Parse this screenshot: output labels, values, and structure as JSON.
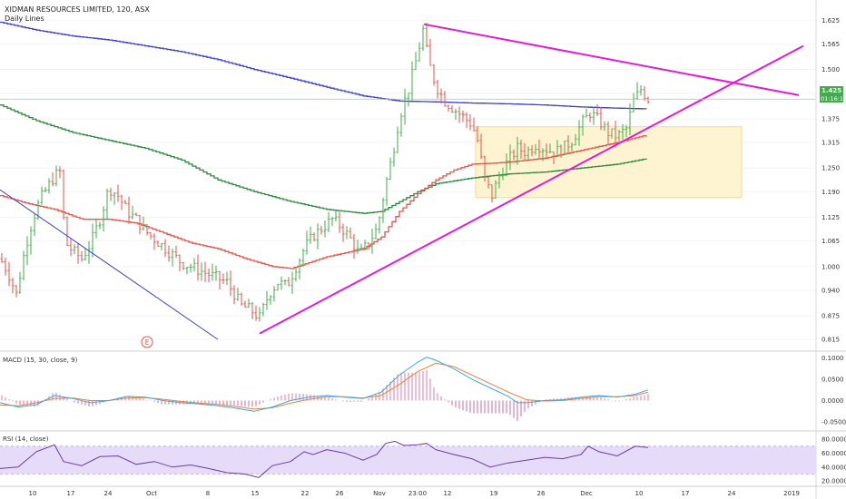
{
  "header": {
    "title": "XIDMAN RESOURCES LIMITED, 120, ASX",
    "subtitle": "Daily Lines"
  },
  "price_label": {
    "value": "1.425",
    "countdown": "01:16:14"
  },
  "macd": {
    "title": "MACD (15, 30, close, 9)"
  },
  "rsi": {
    "title": "RSI (14, close)"
  },
  "earnings_marker": "E",
  "colors": {
    "ma_blue": "#3d3fd0",
    "ma_green": "#2e8a3e",
    "ma_red": "#e8524a",
    "trend_magenta": "#e21bd8",
    "candle_up": "#3fae4a",
    "candle_down": "#e8524a",
    "zone_fill": "#fff4d1",
    "zone_stroke": "#f0dc8a",
    "macd_line": "#3aa8df",
    "signal_line": "#f07c3a",
    "rsi_line": "#6b3aa6",
    "rsi_band": "#e6dcfa"
  },
  "chart_data": [
    {
      "type": "candlestick",
      "title": "XIDMAN RESOURCES LIMITED, 120, ASX",
      "x_tick_labels": [
        "10",
        "17",
        "24",
        "Oct",
        "8",
        "15",
        "22",
        "26",
        "Nov",
        "23:00",
        "12",
        "19",
        "26",
        "Dec",
        "10",
        "17",
        "24",
        "2019"
      ],
      "y_tick_labels": [
        "1.625",
        "1.565",
        "1.500",
        "1.440",
        "1.375",
        "1.315",
        "1.250",
        "1.190",
        "1.125",
        "1.065",
        "1.000",
        "0.940",
        "0.875",
        "0.815"
      ],
      "ylim": [
        0.79,
        1.665
      ],
      "current_price": 1.425,
      "price_points": [
        [
          0,
          1.02
        ],
        [
          8,
          0.99
        ],
        [
          18,
          0.93
        ],
        [
          28,
          1.05
        ],
        [
          36,
          1.12
        ],
        [
          44,
          1.17
        ],
        [
          52,
          1.2
        ],
        [
          60,
          1.23
        ],
        [
          66,
          1.24
        ],
        [
          72,
          1.06
        ],
        [
          80,
          1.04
        ],
        [
          90,
          1.02
        ],
        [
          100,
          1.06
        ],
        [
          110,
          1.12
        ],
        [
          120,
          1.2
        ],
        [
          130,
          1.18
        ],
        [
          140,
          1.14
        ],
        [
          150,
          1.12
        ],
        [
          160,
          1.09
        ],
        [
          170,
          1.07
        ],
        [
          180,
          1.05
        ],
        [
          190,
          1.03
        ],
        [
          200,
          1.01
        ],
        [
          210,
          1.0
        ],
        [
          220,
          0.99
        ],
        [
          230,
          0.98
        ],
        [
          240,
          0.97
        ],
        [
          250,
          0.96
        ],
        [
          258,
          0.93
        ],
        [
          266,
          0.9
        ],
        [
          276,
          0.89
        ],
        [
          286,
          0.87
        ],
        [
          296,
          0.93
        ],
        [
          306,
          0.96
        ],
        [
          316,
          0.95
        ],
        [
          326,
          1.0
        ],
        [
          336,
          1.05
        ],
        [
          346,
          1.08
        ],
        [
          356,
          1.1
        ],
        [
          366,
          1.12
        ],
        [
          376,
          1.1
        ],
        [
          386,
          1.07
        ],
        [
          396,
          1.03
        ],
        [
          406,
          1.06
        ],
        [
          416,
          1.1
        ],
        [
          424,
          1.2
        ],
        [
          432,
          1.28
        ],
        [
          440,
          1.38
        ],
        [
          450,
          1.45
        ],
        [
          458,
          1.52
        ],
        [
          466,
          1.6
        ],
        [
          472,
          1.52
        ],
        [
          480,
          1.46
        ],
        [
          490,
          1.42
        ],
        [
          500,
          1.4
        ],
        [
          510,
          1.38
        ],
        [
          520,
          1.36
        ],
        [
          526,
          1.32
        ],
        [
          534,
          1.22
        ],
        [
          542,
          1.18
        ],
        [
          550,
          1.23
        ],
        [
          560,
          1.27
        ],
        [
          570,
          1.3
        ],
        [
          580,
          1.29
        ],
        [
          590,
          1.31
        ],
        [
          600,
          1.3
        ],
        [
          610,
          1.29
        ],
        [
          620,
          1.3
        ],
        [
          630,
          1.32
        ],
        [
          640,
          1.36
        ],
        [
          650,
          1.39
        ],
        [
          660,
          1.37
        ],
        [
          670,
          1.34
        ],
        [
          680,
          1.33
        ],
        [
          690,
          1.35
        ],
        [
          698,
          1.42
        ],
        [
          706,
          1.45
        ],
        [
          714,
          1.425
        ]
      ],
      "series": [
        {
          "name": "blue MA",
          "points": [
            [
              0,
              1.62
            ],
            [
              40,
              1.6
            ],
            [
              80,
              1.585
            ],
            [
              120,
              1.575
            ],
            [
              160,
              1.56
            ],
            [
              200,
              1.545
            ],
            [
              240,
              1.525
            ],
            [
              280,
              1.5
            ],
            [
              320,
              1.478
            ],
            [
              360,
              1.455
            ],
            [
              400,
              1.433
            ],
            [
              440,
              1.42
            ],
            [
              480,
              1.418
            ],
            [
              520,
              1.415
            ],
            [
              560,
              1.413
            ],
            [
              600,
              1.41
            ],
            [
              640,
              1.405
            ],
            [
              680,
              1.402
            ],
            [
              714,
              1.4
            ]
          ]
        },
        {
          "name": "green MA",
          "points": [
            [
              0,
              1.41
            ],
            [
              40,
              1.37
            ],
            [
              80,
              1.34
            ],
            [
              120,
              1.32
            ],
            [
              160,
              1.3
            ],
            [
              200,
              1.27
            ],
            [
              240,
              1.22
            ],
            [
              280,
              1.19
            ],
            [
              320,
              1.165
            ],
            [
              360,
              1.145
            ],
            [
              400,
              1.135
            ],
            [
              420,
              1.14
            ],
            [
              440,
              1.165
            ],
            [
              460,
              1.19
            ],
            [
              480,
              1.21
            ],
            [
              520,
              1.225
            ],
            [
              560,
              1.235
            ],
            [
              600,
              1.24
            ],
            [
              640,
              1.25
            ],
            [
              680,
              1.26
            ],
            [
              714,
              1.275
            ]
          ]
        },
        {
          "name": "red MA",
          "points": [
            [
              0,
              1.18
            ],
            [
              30,
              1.16
            ],
            [
              60,
              1.145
            ],
            [
              90,
              1.12
            ],
            [
              120,
              1.12
            ],
            [
              150,
              1.11
            ],
            [
              180,
              1.085
            ],
            [
              210,
              1.06
            ],
            [
              240,
              1.045
            ],
            [
              270,
              1.02
            ],
            [
              300,
              1.0
            ],
            [
              320,
              0.995
            ],
            [
              340,
              1.01
            ],
            [
              360,
              1.025
            ],
            [
              380,
              1.035
            ],
            [
              400,
              1.045
            ],
            [
              420,
              1.075
            ],
            [
              440,
              1.14
            ],
            [
              460,
              1.185
            ],
            [
              480,
              1.22
            ],
            [
              500,
              1.245
            ],
            [
              520,
              1.26
            ],
            [
              540,
              1.262
            ],
            [
              560,
              1.265
            ],
            [
              580,
              1.27
            ],
            [
              600,
              1.275
            ],
            [
              620,
              1.285
            ],
            [
              640,
              1.295
            ],
            [
              660,
              1.305
            ],
            [
              680,
              1.315
            ],
            [
              714,
              1.335
            ]
          ]
        }
      ],
      "trendlines": [
        {
          "name": "upper magenta",
          "from": [
            467,
            1.615
          ],
          "to": [
            880,
            1.435
          ]
        },
        {
          "name": "rising magenta",
          "from": [
            286,
            0.83
          ],
          "to": [
            885,
            1.56
          ]
        },
        {
          "name": "falling blue",
          "from": [
            0,
            1.195
          ],
          "to": [
            240,
            0.815
          ]
        }
      ],
      "zone": {
        "x_from": 524,
        "x_to": 817,
        "y_from": 1.175,
        "y_to": 1.355
      }
    },
    {
      "type": "line",
      "title": "MACD (15, 30, close, 9)",
      "y_tick_labels": [
        "0.1000",
        "0.0500",
        "0.0000",
        "-0.0500"
      ],
      "ylim": [
        -0.065,
        0.11
      ],
      "series": [
        {
          "name": "MACD",
          "points": [
            [
              0,
              -0.005
            ],
            [
              20,
              -0.015
            ],
            [
              40,
              -0.01
            ],
            [
              60,
              0.012
            ],
            [
              80,
              0.005
            ],
            [
              100,
              -0.005
            ],
            [
              120,
              0.0
            ],
            [
              140,
              0.01
            ],
            [
              160,
              0.008
            ],
            [
              180,
              0.0
            ],
            [
              200,
              -0.005
            ],
            [
              220,
              -0.008
            ],
            [
              240,
              -0.012
            ],
            [
              260,
              -0.018
            ],
            [
              280,
              -0.025
            ],
            [
              300,
              -0.015
            ],
            [
              320,
              0.0
            ],
            [
              340,
              0.008
            ],
            [
              360,
              0.012
            ],
            [
              380,
              0.008
            ],
            [
              400,
              0.005
            ],
            [
              420,
              0.02
            ],
            [
              440,
              0.06
            ],
            [
              460,
              0.09
            ],
            [
              470,
              0.102
            ],
            [
              480,
              0.095
            ],
            [
              500,
              0.075
            ],
            [
              520,
              0.05
            ],
            [
              540,
              0.03
            ],
            [
              560,
              0.01
            ],
            [
              570,
              -0.005
            ],
            [
              580,
              -0.005
            ],
            [
              600,
              0.0
            ],
            [
              620,
              0.002
            ],
            [
              640,
              0.008
            ],
            [
              660,
              0.012
            ],
            [
              680,
              0.008
            ],
            [
              700,
              0.015
            ],
            [
              714,
              0.025
            ]
          ]
        },
        {
          "name": "Signal",
          "points": [
            [
              0,
              -0.01
            ],
            [
              20,
              -0.012
            ],
            [
              40,
              -0.005
            ],
            [
              60,
              0.005
            ],
            [
              80,
              0.006
            ],
            [
              100,
              0.0
            ],
            [
              120,
              0.0
            ],
            [
              140,
              0.006
            ],
            [
              160,
              0.007
            ],
            [
              180,
              0.003
            ],
            [
              200,
              -0.002
            ],
            [
              220,
              -0.006
            ],
            [
              240,
              -0.009
            ],
            [
              260,
              -0.014
            ],
            [
              280,
              -0.02
            ],
            [
              300,
              -0.017
            ],
            [
              320,
              -0.006
            ],
            [
              340,
              0.003
            ],
            [
              360,
              0.009
            ],
            [
              380,
              0.009
            ],
            [
              400,
              0.006
            ],
            [
              420,
              0.012
            ],
            [
              440,
              0.038
            ],
            [
              460,
              0.068
            ],
            [
              480,
              0.088
            ],
            [
              500,
              0.08
            ],
            [
              520,
              0.06
            ],
            [
              540,
              0.04
            ],
            [
              560,
              0.02
            ],
            [
              580,
              0.002
            ],
            [
              600,
              -0.001
            ],
            [
              620,
              0.0
            ],
            [
              640,
              0.005
            ],
            [
              660,
              0.009
            ],
            [
              680,
              0.009
            ],
            [
              700,
              0.012
            ],
            [
              714,
              0.02
            ]
          ]
        }
      ]
    },
    {
      "type": "line",
      "title": "RSI (14, close)",
      "y_tick_labels": [
        "80.0000",
        "60.0000",
        "40.0000",
        "20.0000"
      ],
      "ylim": [
        15,
        88
      ],
      "band": [
        30,
        70
      ],
      "series": [
        {
          "name": "RSI",
          "points": [
            [
              0,
              38
            ],
            [
              20,
              40
            ],
            [
              40,
              62
            ],
            [
              60,
              72
            ],
            [
              70,
              48
            ],
            [
              90,
              42
            ],
            [
              110,
              55
            ],
            [
              130,
              56
            ],
            [
              150,
              44
            ],
            [
              170,
              48
            ],
            [
              190,
              40
            ],
            [
              210,
              43
            ],
            [
              230,
              38
            ],
            [
              250,
              32
            ],
            [
              270,
              30
            ],
            [
              285,
              25
            ],
            [
              300,
              42
            ],
            [
              320,
              48
            ],
            [
              335,
              62
            ],
            [
              345,
              58
            ],
            [
              360,
              65
            ],
            [
              380,
              60
            ],
            [
              400,
              50
            ],
            [
              415,
              58
            ],
            [
              425,
              74
            ],
            [
              435,
              77
            ],
            [
              445,
              71
            ],
            [
              460,
              72
            ],
            [
              470,
              74
            ],
            [
              480,
              65
            ],
            [
              500,
              58
            ],
            [
              520,
              52
            ],
            [
              540,
              40
            ],
            [
              560,
              46
            ],
            [
              580,
              50
            ],
            [
              600,
              54
            ],
            [
              620,
              52
            ],
            [
              640,
              58
            ],
            [
              648,
              70
            ],
            [
              660,
              62
            ],
            [
              680,
              56
            ],
            [
              700,
              70
            ],
            [
              714,
              68
            ]
          ]
        }
      ]
    }
  ]
}
